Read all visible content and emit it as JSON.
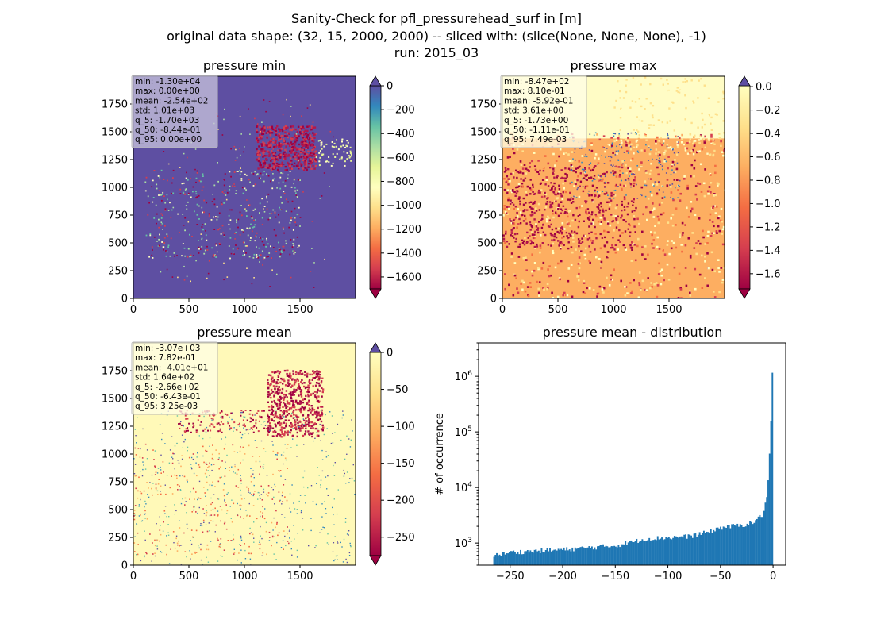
{
  "suptitle": {
    "line1": "Sanity-Check for pfl_pressurehead_surf in [m]",
    "line2": "original data shape: (32, 15, 2000, 2000) -- sliced with: (slice(None, None, None), -1)",
    "line3": "run: 2015_03"
  },
  "chart_data": [
    {
      "type": "heatmap",
      "title": "pressure min",
      "x_ticks": [
        "0",
        "500",
        "1000",
        "1500"
      ],
      "y_ticks": [
        "0",
        "250",
        "500",
        "750",
        "1000",
        "1250",
        "1500",
        "1750"
      ],
      "xlim": [
        0,
        2000
      ],
      "ylim": [
        0,
        2000
      ],
      "colorbar": {
        "cmap": "Spectral",
        "range": [
          -1700,
          0
        ],
        "extend": "both",
        "ticks": [
          "0",
          "−200",
          "−400",
          "−600",
          "−800",
          "−1000",
          "−1200",
          "−1400",
          "−1600"
        ],
        "tick_values": [
          0,
          -200,
          -400,
          -600,
          -800,
          -1000,
          -1200,
          -1400,
          -1600
        ]
      },
      "dominant_value": 0,
      "stats": [
        "min: -1.30e+04",
        "max: 0.00e+00",
        "mean: -2.54e+02",
        "std: 1.01e+03",
        "q_5: -1.70e+03",
        "q_50: -8.44e-01",
        "q_95: 0.00e+00"
      ]
    },
    {
      "type": "heatmap",
      "title": "pressure max",
      "x_ticks": [
        "0",
        "500",
        "1000",
        "1500"
      ],
      "y_ticks": [
        "0",
        "250",
        "500",
        "750",
        "1000",
        "1250",
        "1500",
        "1750"
      ],
      "xlim": [
        0,
        2000
      ],
      "ylim": [
        0,
        2000
      ],
      "colorbar": {
        "cmap": "Spectral",
        "range": [
          -1.73,
          0.0075
        ],
        "extend": "both",
        "ticks": [
          "0.0",
          "−0.2",
          "−0.4",
          "−0.6",
          "−0.8",
          "−1.0",
          "−1.2",
          "−1.4",
          "−1.6"
        ],
        "tick_values": [
          0,
          -0.2,
          -0.4,
          -0.6,
          -0.8,
          -1.0,
          -1.2,
          -1.4,
          -1.6
        ]
      },
      "stats": [
        "min: -8.47e+02",
        "max: 8.10e-01",
        "mean: -5.92e-01",
        "std: 3.61e+00",
        "q_5: -1.73e+00",
        "q_50: -1.11e-01",
        "q_95: 7.49e-03"
      ]
    },
    {
      "type": "heatmap",
      "title": "pressure mean",
      "x_ticks": [
        "0",
        "500",
        "1000",
        "1500"
      ],
      "y_ticks": [
        "0",
        "250",
        "500",
        "750",
        "1000",
        "1250",
        "1500",
        "1750"
      ],
      "xlim": [
        0,
        2000
      ],
      "ylim": [
        0,
        2000
      ],
      "colorbar": {
        "cmap": "Spectral",
        "range": [
          -275,
          0.00325
        ],
        "extend": "both",
        "ticks": [
          "0",
          "−50",
          "−100",
          "−150",
          "−200",
          "−250"
        ],
        "tick_values": [
          0,
          -50,
          -100,
          -150,
          -200,
          -250
        ]
      },
      "stats": [
        "min: -3.07e+03",
        "max: 7.82e-01",
        "mean: -4.01e+01",
        "std: 1.64e+02",
        "q_5: -2.66e+02",
        "q_50: -6.43e-01",
        "q_95: 3.25e-03"
      ]
    },
    {
      "type": "bar",
      "title": "pressure mean - distribution",
      "ylabel": "# of occurrence",
      "xlabel": "",
      "yscale": "log",
      "xlim": [
        -280,
        12
      ],
      "ylim": [
        400,
        4000000
      ],
      "x_ticks": [
        -250,
        -200,
        -150,
        -100,
        -50,
        0
      ],
      "x_tick_labels": [
        "−250",
        "−200",
        "−150",
        "−100",
        "−50",
        "0"
      ],
      "y_ticks": [
        1000,
        10000,
        100000,
        1000000
      ],
      "bar_color": "#1f77b4",
      "bin_range": [
        -266,
        0
      ],
      "bin_count": 200,
      "bins_anchor": [
        [
          -266,
          600
        ],
        [
          -250,
          680
        ],
        [
          -200,
          760
        ],
        [
          -150,
          900
        ],
        [
          -120,
          1200
        ],
        [
          -100,
          1250
        ],
        [
          -80,
          1320
        ],
        [
          -60,
          1600
        ],
        [
          -50,
          1900
        ],
        [
          -40,
          2000
        ],
        [
          -30,
          2100
        ],
        [
          -20,
          2300
        ],
        [
          -10,
          3200
        ],
        [
          -6,
          6500
        ],
        [
          -4,
          20000
        ],
        [
          -2,
          150000
        ],
        [
          -1,
          700000
        ],
        [
          0,
          2400000
        ]
      ]
    }
  ]
}
